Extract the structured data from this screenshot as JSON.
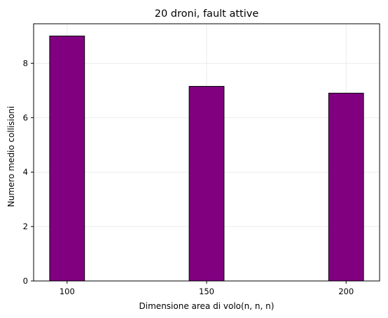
{
  "chart_data": {
    "type": "bar",
    "title": "20 droni, fault attive",
    "xlabel": "Dimensione area di volo(n, n, n)",
    "ylabel": "Numero medio collisioni",
    "x": [
      100,
      150,
      200
    ],
    "categories": [
      "100",
      "150",
      "200"
    ],
    "values": [
      9.0,
      7.15,
      6.9
    ],
    "xlim": [
      88,
      212
    ],
    "ylim": [
      0,
      9.45
    ],
    "yticks": [
      0,
      2,
      4,
      6,
      8
    ],
    "yticklabels": [
      "0",
      "2",
      "4",
      "6",
      "8"
    ],
    "xticks": [
      100,
      150,
      200
    ],
    "xticklabels": [
      "100",
      "150",
      "200"
    ],
    "bar_width": 12.5,
    "grid": true,
    "bar_color": "#800080",
    "edge_color": "#000000"
  }
}
